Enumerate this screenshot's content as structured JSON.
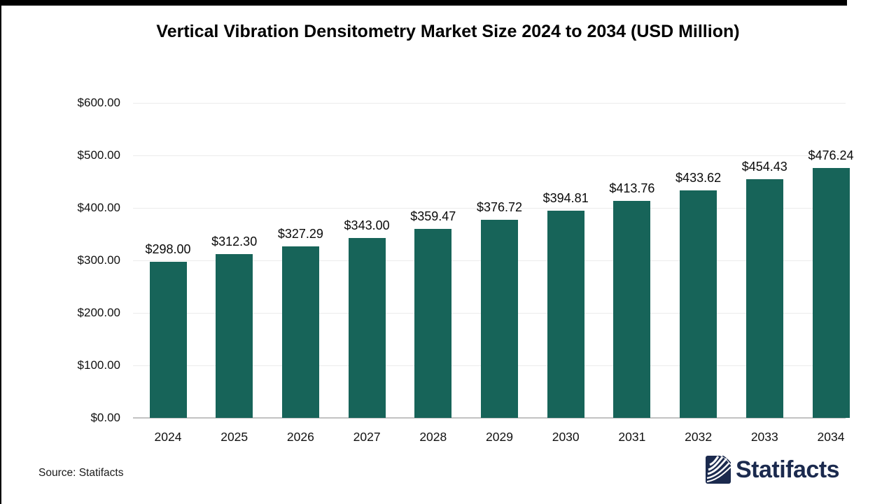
{
  "chart_data": {
    "type": "bar",
    "title": "Vertical Vibration Densitometry Market Size 2024 to 2034 (USD Million)",
    "categories": [
      "2024",
      "2025",
      "2026",
      "2027",
      "2028",
      "2029",
      "2030",
      "2031",
      "2032",
      "2033",
      "2034"
    ],
    "values": [
      298.0,
      312.3,
      327.29,
      343.0,
      359.47,
      376.72,
      394.81,
      413.76,
      433.62,
      454.43,
      476.24
    ],
    "value_labels": [
      "$298.00",
      "$312.30",
      "$327.29",
      "$343.00",
      "$359.47",
      "$376.72",
      "$394.81",
      "$413.76",
      "$433.62",
      "$454.43",
      "$476.24"
    ],
    "xlabel": "",
    "ylabel": "",
    "ylim": [
      0,
      600
    ],
    "yticks": [
      0,
      100,
      200,
      300,
      400,
      500,
      600
    ],
    "ytick_labels": [
      "$0.00",
      "$100.00",
      "$200.00",
      "$300.00",
      "$400.00",
      "$500.00",
      "$600.00"
    ],
    "grid": true,
    "legend_position": "none",
    "bar_color": "#176459"
  },
  "footer": {
    "source_label": "Source: Statifacts",
    "brand_name": "Statifacts",
    "brand_color": "#1B2A4E"
  }
}
